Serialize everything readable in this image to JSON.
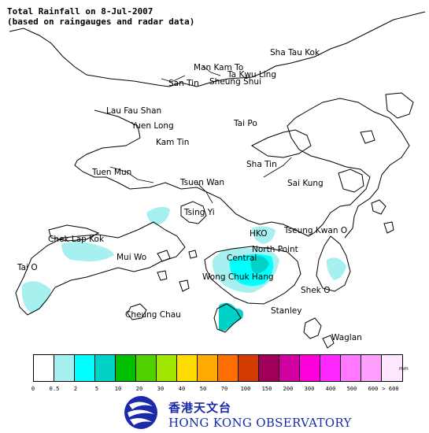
{
  "title": {
    "line1": "Total Rainfall on 8-Jul-2007",
    "line2": "(based on raingauges and radar data)"
  },
  "places": [
    {
      "id": "sha-tau-kok",
      "name": "Sha Tau Kok"
    },
    {
      "id": "man-kam-to",
      "name": "Man Kam To"
    },
    {
      "id": "ta-kwu-ling",
      "name": "Ta Kwu Ling"
    },
    {
      "id": "san-tin",
      "name": "San Tin"
    },
    {
      "id": "sheung-shui",
      "name": "Sheung Shui"
    },
    {
      "id": "lau-fau-shan",
      "name": "Lau Fau Shan"
    },
    {
      "id": "yuen-long",
      "name": "Yuen Long"
    },
    {
      "id": "tai-po",
      "name": "Tai Po"
    },
    {
      "id": "kam-tin",
      "name": "Kam Tin"
    },
    {
      "id": "sha-tin",
      "name": "Sha Tin"
    },
    {
      "id": "tuen-mun",
      "name": "Tuen Mun"
    },
    {
      "id": "tsuen-wan",
      "name": "Tsuen Wan"
    },
    {
      "id": "sai-kung",
      "name": "Sai Kung"
    },
    {
      "id": "tsing-yi",
      "name": "Tsing Yi"
    },
    {
      "id": "hko",
      "name": "HKO"
    },
    {
      "id": "tseung-kwan-o",
      "name": "Tseung Kwan O"
    },
    {
      "id": "chek-lap-kok",
      "name": "Chek Lap Kok"
    },
    {
      "id": "north-point",
      "name": "North Point"
    },
    {
      "id": "mui-wo",
      "name": "Mui Wo"
    },
    {
      "id": "central",
      "name": "Central"
    },
    {
      "id": "tai-o",
      "name": "Tai O"
    },
    {
      "id": "wong-chuk-hang",
      "name": "Wong Chuk Hang"
    },
    {
      "id": "shek-o",
      "name": "Shek O"
    },
    {
      "id": "stanley",
      "name": "Stanley"
    },
    {
      "id": "cheung-chau",
      "name": "Cheung Chau"
    },
    {
      "id": "waglan",
      "name": "Waglan"
    }
  ],
  "legend": {
    "unit": "mm",
    "colors": [
      "#ffffff",
      "#a6f0f0",
      "#00ffff",
      "#00d2c8",
      "#00c000",
      "#50d200",
      "#a0e600",
      "#ffdc00",
      "#ffaa00",
      "#ff6e00",
      "#d23c00",
      "#a0005a",
      "#d200a0",
      "#ff00dc",
      "#ff28ff",
      "#ff78ff",
      "#ffa0ff",
      "#ffe6ff"
    ],
    "ticks": [
      "0",
      "0.5",
      "2",
      "5",
      "10",
      "20",
      "30",
      "40",
      "50",
      "70",
      "100",
      "150",
      "200",
      "300",
      "400",
      "500",
      "600",
      "> 600"
    ]
  },
  "logo": {
    "chinese": "香港天文台",
    "english": "HONG KONG OBSERVATORY"
  }
}
